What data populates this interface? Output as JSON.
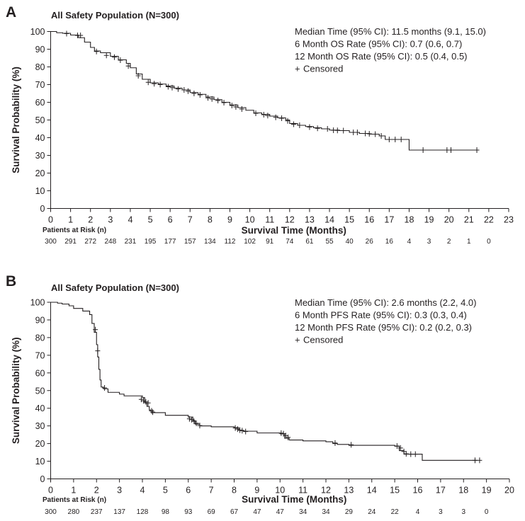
{
  "chart_data": [
    {
      "panel_label": "A",
      "type": "line",
      "title": "All Safety Population (N=300)",
      "xlabel": "Survival Time (Months)",
      "ylabel": "Survival Probability (%)",
      "xlim": [
        0,
        23
      ],
      "ylim": [
        0,
        100
      ],
      "x_ticks": [
        0,
        1,
        2,
        3,
        4,
        5,
        6,
        7,
        8,
        9,
        10,
        11,
        12,
        13,
        14,
        15,
        16,
        17,
        18,
        19,
        20,
        21,
        22,
        23
      ],
      "y_ticks": [
        0,
        10,
        20,
        30,
        40,
        50,
        60,
        70,
        80,
        90,
        100
      ],
      "grid": false,
      "stats": [
        "Median Time (95% CI): 11.5 months (9.1, 15.0)",
        "6 Month OS Rate (95% CI): 0.7 (0.6, 0.7)",
        "12 Month OS Rate (95% CI): 0.5 (0.4, 0.5)"
      ],
      "censored_label": "Censored",
      "censored_symbol": "+",
      "risk_table_title": "Patients at Risk (n)",
      "at_risk": [
        300,
        291,
        272,
        248,
        231,
        195,
        177,
        157,
        134,
        112,
        102,
        91,
        74,
        61,
        55,
        40,
        26,
        16,
        4,
        3,
        2,
        1,
        0
      ],
      "series": [
        {
          "x": [
            0,
            0.3,
            0.6,
            1.0,
            1.4,
            1.7,
            2.0,
            2.2,
            2.5,
            3.0,
            3.4,
            3.8,
            4.0,
            4.3,
            4.6,
            5.0,
            5.4,
            5.8,
            6.2,
            6.6,
            7.0,
            7.4,
            7.8,
            8.2,
            8.6,
            9.0,
            9.4,
            9.8,
            10.2,
            10.6,
            11.0,
            11.4,
            11.8,
            12.0,
            12.4,
            12.8,
            13.2,
            13.6,
            14.0,
            14.5,
            15.0,
            15.5,
            16.0,
            16.5,
            16.8,
            17.2,
            17.6,
            18.0,
            18.7,
            20.0,
            21.4
          ],
          "y": [
            100,
            99.3,
            99,
            98,
            96.5,
            94,
            91,
            89,
            88,
            86,
            84,
            82,
            79.5,
            76,
            73,
            71,
            70.3,
            69.2,
            68,
            67,
            65.5,
            64.5,
            63,
            61.5,
            60,
            58.5,
            57,
            55.5,
            54,
            53.2,
            52.2,
            51.2,
            50,
            48,
            47,
            46.3,
            45.6,
            45,
            44.3,
            44,
            43,
            42.4,
            42,
            41,
            39,
            39,
            39,
            33,
            33,
            33,
            33
          ]
        }
      ],
      "censored": [
        {
          "x": 0.8,
          "y": 98.8
        },
        {
          "x": 1.35,
          "y": 97.8
        },
        {
          "x": 1.5,
          "y": 97.8
        },
        {
          "x": 2.3,
          "y": 88.7
        },
        {
          "x": 2.8,
          "y": 86.5
        },
        {
          "x": 3.2,
          "y": 85.5
        },
        {
          "x": 3.5,
          "y": 83.8
        },
        {
          "x": 3.9,
          "y": 80.5
        },
        {
          "x": 4.4,
          "y": 75
        },
        {
          "x": 4.9,
          "y": 71.3
        },
        {
          "x": 5.2,
          "y": 70.5
        },
        {
          "x": 5.5,
          "y": 70
        },
        {
          "x": 5.9,
          "y": 68.8
        },
        {
          "x": 6.1,
          "y": 68.3
        },
        {
          "x": 6.4,
          "y": 67.5
        },
        {
          "x": 6.7,
          "y": 67
        },
        {
          "x": 6.9,
          "y": 66.3
        },
        {
          "x": 7.2,
          "y": 65
        },
        {
          "x": 7.5,
          "y": 64.2
        },
        {
          "x": 7.9,
          "y": 62.5
        },
        {
          "x": 8.1,
          "y": 61.9
        },
        {
          "x": 8.4,
          "y": 61
        },
        {
          "x": 8.7,
          "y": 59.8
        },
        {
          "x": 9.1,
          "y": 58.2
        },
        {
          "x": 9.3,
          "y": 57.4
        },
        {
          "x": 9.6,
          "y": 56.2
        },
        {
          "x": 10.3,
          "y": 53.8
        },
        {
          "x": 10.7,
          "y": 53
        },
        {
          "x": 10.9,
          "y": 52.5
        },
        {
          "x": 11.3,
          "y": 51.5
        },
        {
          "x": 11.6,
          "y": 51
        },
        {
          "x": 11.9,
          "y": 49.5
        },
        {
          "x": 12.2,
          "y": 47.6
        },
        {
          "x": 12.5,
          "y": 47
        },
        {
          "x": 13.0,
          "y": 46
        },
        {
          "x": 13.4,
          "y": 45.3
        },
        {
          "x": 13.9,
          "y": 45
        },
        {
          "x": 14.2,
          "y": 44.2
        },
        {
          "x": 14.4,
          "y": 44.1
        },
        {
          "x": 14.7,
          "y": 44
        },
        {
          "x": 15.2,
          "y": 43
        },
        {
          "x": 15.4,
          "y": 43
        },
        {
          "x": 15.8,
          "y": 42.4
        },
        {
          "x": 16.0,
          "y": 42.2
        },
        {
          "x": 16.3,
          "y": 42
        },
        {
          "x": 16.6,
          "y": 41
        },
        {
          "x": 17.0,
          "y": 39
        },
        {
          "x": 17.3,
          "y": 39
        },
        {
          "x": 17.6,
          "y": 39
        },
        {
          "x": 18.7,
          "y": 33
        },
        {
          "x": 19.9,
          "y": 33
        },
        {
          "x": 20.1,
          "y": 33
        },
        {
          "x": 21.4,
          "y": 33
        }
      ]
    },
    {
      "panel_label": "B",
      "type": "line",
      "title": "All Safety Population (N=300)",
      "xlabel": "Survival Time (Months)",
      "ylabel": "Survival Probability (%)",
      "xlim": [
        0,
        20
      ],
      "ylim": [
        0,
        100
      ],
      "x_ticks": [
        0,
        1,
        2,
        3,
        4,
        5,
        6,
        7,
        8,
        9,
        10,
        11,
        12,
        13,
        14,
        15,
        16,
        17,
        18,
        19,
        20
      ],
      "y_ticks": [
        0,
        10,
        20,
        30,
        40,
        50,
        60,
        70,
        80,
        90,
        100
      ],
      "grid": false,
      "stats": [
        "Median Time (95% CI): 2.6 months (2.2, 4.0)",
        "6 Month PFS Rate (95% CI): 0.3 (0.3, 0.4)",
        "12 Month PFS Rate (95% CI): 0.2 (0.2, 0.3)"
      ],
      "censored_label": "Censored",
      "censored_symbol": "+",
      "risk_table_title": "Patients at Risk (n)",
      "at_risk": [
        300,
        280,
        237,
        137,
        128,
        98,
        93,
        69,
        67,
        47,
        47,
        34,
        34,
        29,
        24,
        22,
        4,
        3,
        3,
        0
      ],
      "series": [
        {
          "x": [
            0,
            0.3,
            0.5,
            0.8,
            1.0,
            1.4,
            1.7,
            1.8,
            1.9,
            2.0,
            2.05,
            2.1,
            2.15,
            2.2,
            2.3,
            2.5,
            3.0,
            3.2,
            3.5,
            4.0,
            4.1,
            4.2,
            4.3,
            4.4,
            5.0,
            6.0,
            6.2,
            6.3,
            6.5,
            7.0,
            8.0,
            8.2,
            8.4,
            9.0,
            10.0,
            10.2,
            10.4,
            11.0,
            12.0,
            12.3,
            12.5,
            13.0,
            14.0,
            15.0,
            15.2,
            15.4,
            16.0,
            16.2,
            18.6
          ],
          "y": [
            100,
            99.5,
            99,
            98,
            96.5,
            95,
            93,
            88,
            83,
            76,
            69,
            62,
            56,
            52,
            51,
            49,
            48,
            47,
            47,
            46,
            43,
            41,
            39,
            37.5,
            36,
            35,
            33,
            31,
            30,
            29.5,
            29,
            27.5,
            27,
            26,
            25.5,
            23,
            22,
            21.5,
            21,
            20,
            19.5,
            19,
            19,
            18.5,
            16,
            14,
            14,
            10.5,
            10.5
          ]
        }
      ],
      "censored": [
        {
          "x": 1.95,
          "y": 84.5
        },
        {
          "x": 2.05,
          "y": 72.5
        },
        {
          "x": 2.35,
          "y": 51.5
        },
        {
          "x": 3.95,
          "y": 45
        },
        {
          "x": 4.05,
          "y": 44.2
        },
        {
          "x": 4.15,
          "y": 43.6
        },
        {
          "x": 4.25,
          "y": 43
        },
        {
          "x": 4.4,
          "y": 38.5
        },
        {
          "x": 4.45,
          "y": 37.8
        },
        {
          "x": 6.05,
          "y": 34
        },
        {
          "x": 6.15,
          "y": 33.5
        },
        {
          "x": 6.25,
          "y": 32.6
        },
        {
          "x": 6.35,
          "y": 31.5
        },
        {
          "x": 6.5,
          "y": 30.2
        },
        {
          "x": 8.05,
          "y": 28.8
        },
        {
          "x": 8.15,
          "y": 28.2
        },
        {
          "x": 8.25,
          "y": 27.6
        },
        {
          "x": 8.35,
          "y": 27.3
        },
        {
          "x": 8.5,
          "y": 26.8
        },
        {
          "x": 10.05,
          "y": 25.9
        },
        {
          "x": 10.15,
          "y": 25.6
        },
        {
          "x": 10.25,
          "y": 24.5
        },
        {
          "x": 10.35,
          "y": 23.5
        },
        {
          "x": 12.4,
          "y": 20.3
        },
        {
          "x": 13.1,
          "y": 19.3
        },
        {
          "x": 15.1,
          "y": 18.6
        },
        {
          "x": 15.25,
          "y": 17.5
        },
        {
          "x": 15.4,
          "y": 15.5
        },
        {
          "x": 15.5,
          "y": 14.2
        },
        {
          "x": 15.7,
          "y": 14
        },
        {
          "x": 15.9,
          "y": 14
        },
        {
          "x": 18.5,
          "y": 10.5
        },
        {
          "x": 18.7,
          "y": 10.5
        }
      ]
    }
  ]
}
